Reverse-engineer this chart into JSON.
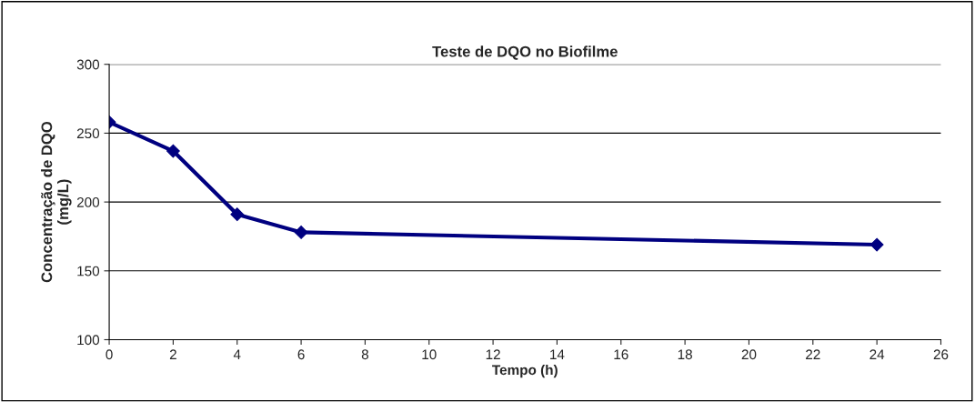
{
  "chart_data": {
    "type": "line",
    "title": "Teste de DQO no Biofilme",
    "xlabel": "Tempo (h)",
    "ylabel": "Concentração de DQO\n(mg/L)",
    "x": [
      0,
      2,
      4,
      6,
      24
    ],
    "series": [
      {
        "color": "#000080",
        "values": [
          258,
          237,
          191,
          178,
          169
        ]
      }
    ],
    "xlim": [
      0,
      26
    ],
    "xticks": [
      0,
      2,
      4,
      6,
      8,
      10,
      12,
      14,
      16,
      18,
      20,
      22,
      24,
      26
    ],
    "ylim": [
      100,
      300
    ],
    "yticks": [
      100,
      150,
      200,
      250,
      300
    ],
    "grid": "y",
    "marker": "diamond",
    "line_style": "solid"
  }
}
